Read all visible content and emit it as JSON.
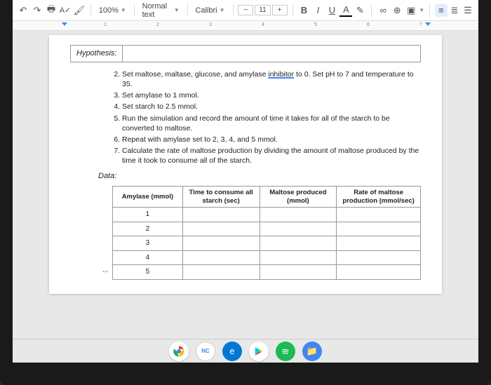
{
  "toolbar": {
    "zoom": "100%",
    "style": "Normal text",
    "font": "Calibri",
    "fontsize": "11",
    "minus": "−",
    "plus": "+",
    "bold": "B",
    "italic": "I",
    "underline": "U",
    "strike": "A",
    "link": "∞",
    "comment": "⊕"
  },
  "ruler": {
    "nums": [
      "1",
      "2",
      "3",
      "4",
      "5",
      "6",
      "7"
    ]
  },
  "doc": {
    "hypothesis_label": "Hypothesis:",
    "steps_start": 2,
    "steps": [
      "Set maltose, maltase, glucose, and amylase inhibitor to 0. Set pH to 7 and temperature to 35.",
      "Set amylase to 1 mmol.",
      "Set starch to 2.5 mmol.",
      "Run the simulation and record the amount of time it takes for all of the starch to be converted to maltose.",
      "Repeat with amylase set to 2, 3, 4, and 5 mmol.",
      "Calculate the rate of maltose production by dividing the amount of maltose produced by the time it took to consume all of the starch."
    ],
    "step2_inhibitor_word": "inhibitor",
    "data_label": "Data:",
    "table": {
      "columns": [
        "Amylase (mmol)",
        "Time to consume all starch (sec)",
        "Maltose produced (mmol)",
        "Rate of maltose production (mmol/sec)"
      ],
      "rows": [
        [
          "1",
          "",
          "",
          ""
        ],
        [
          "2",
          "",
          "",
          ""
        ],
        [
          "3",
          "",
          "",
          ""
        ],
        [
          "4",
          "",
          "",
          ""
        ],
        [
          "5",
          "",
          "",
          ""
        ]
      ],
      "col_widths": [
        "100px",
        "110px",
        "110px",
        "120px"
      ]
    }
  },
  "taskbar": {
    "docs_label": "NC"
  },
  "colors": {
    "accent": "#4285f4",
    "spotify": "#1db954",
    "edge": "#0078d4"
  }
}
